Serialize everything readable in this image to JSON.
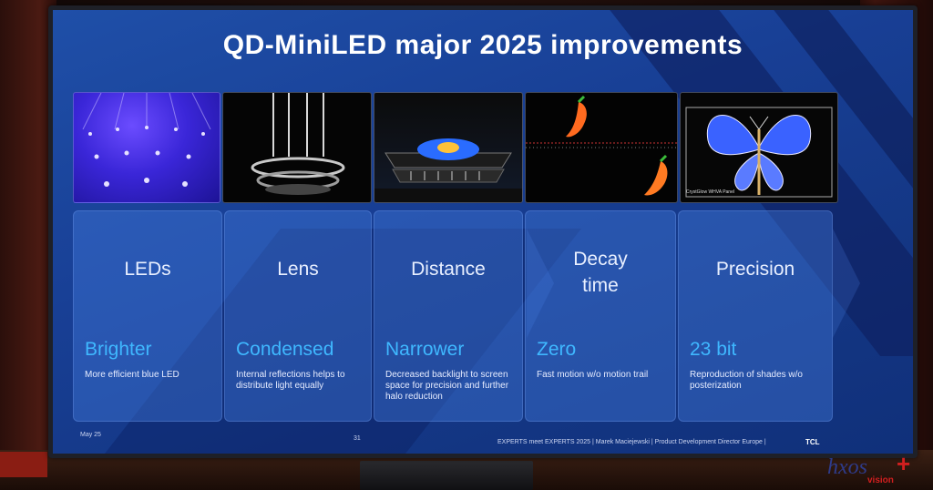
{
  "slide": {
    "title": "QD-MiniLED major 2025 improvements",
    "columns": [
      {
        "heading": "LEDs",
        "sub": "Brighter",
        "desc": "More efficient blue LED"
      },
      {
        "heading": "Lens",
        "sub": "Condensed",
        "desc": "Internal reflections helps to distribute light equally"
      },
      {
        "heading": "Distance",
        "sub": "Narrower",
        "desc": "Decreased backlight to screen space for precision and further halo reduction"
      },
      {
        "heading": "Decay\ntime",
        "sub": "Zero",
        "desc": "Fast motion w/o motion trail"
      },
      {
        "heading": "Precision",
        "sub": "23 bit",
        "desc": "Reproduction of shades w/o posterization"
      }
    ],
    "thumb5_caption": "CrystGlow WHVA Panel",
    "footer": {
      "date": "May 25",
      "page": "31",
      "credit": "EXPERTS meet EXPERTS 2025 | Marek Maciejewski | Product Development Director Europe |",
      "brand": "TCL"
    }
  },
  "watermark": {
    "main": "hxos",
    "plus": "+",
    "sub": "vision"
  },
  "colors": {
    "accent_sub": "#3fb8ff",
    "slide_bg": "#1a45a0",
    "card_bg": "#4682e6"
  }
}
